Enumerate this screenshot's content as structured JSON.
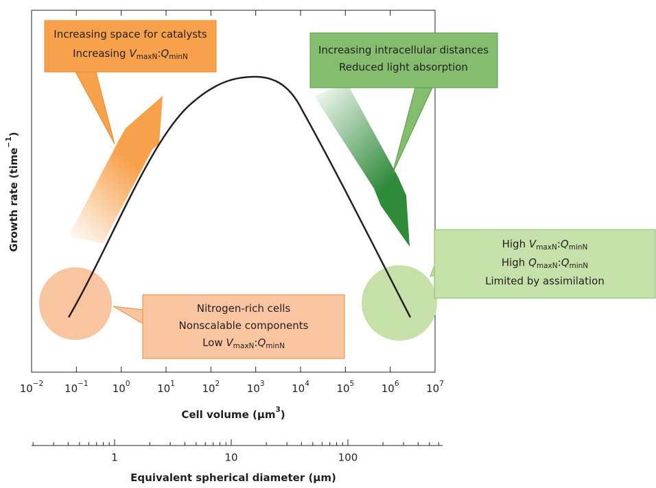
{
  "y_axis": {
    "label": [
      {
        "t": "Growth rate (time"
      },
      {
        "t": "−1",
        "sup": true
      },
      {
        "t": ")"
      }
    ]
  },
  "x_axis": {
    "label": [
      {
        "t": "Cell volume (µm"
      },
      {
        "t": "3",
        "sup": true
      },
      {
        "t": ")"
      }
    ],
    "ticks": [
      {
        "base": "10",
        "exp": "−2"
      },
      {
        "base": "10",
        "exp": "−1"
      },
      {
        "base": "10",
        "exp": "0"
      },
      {
        "base": "10",
        "exp": "1"
      },
      {
        "base": "10",
        "exp": "2"
      },
      {
        "base": "10",
        "exp": "3"
      },
      {
        "base": "10",
        "exp": "4"
      },
      {
        "base": "10",
        "exp": "5"
      },
      {
        "base": "10",
        "exp": "6"
      },
      {
        "base": "10",
        "exp": "7"
      }
    ]
  },
  "x2_axis": {
    "label": [
      {
        "t": "Equivalent spherical diameter (µm)"
      }
    ],
    "ticks": [
      "1",
      "10",
      "100"
    ]
  },
  "annotations": [
    {
      "lines": [
        [
          {
            "t": "Increasing space for catalysts"
          }
        ],
        [
          {
            "t": "Increasing "
          },
          {
            "t": "V",
            "i": true
          },
          {
            "t": "maxN",
            "sub": true
          },
          {
            "t": ":"
          },
          {
            "t": "Q",
            "i": true
          },
          {
            "t": "minN",
            "sub": true
          }
        ]
      ]
    },
    {
      "lines": [
        [
          {
            "t": "Increasing intracellular distances"
          }
        ],
        [
          {
            "t": "Reduced light absorption"
          }
        ]
      ]
    },
    {
      "lines": [
        [
          {
            "t": "High "
          },
          {
            "t": "V",
            "i": true
          },
          {
            "t": "maxN",
            "sub": true
          },
          {
            "t": ":"
          },
          {
            "t": "Q",
            "i": true
          },
          {
            "t": "minN",
            "sub": true
          }
        ],
        [
          {
            "t": "High "
          },
          {
            "t": "Q",
            "i": true
          },
          {
            "t": "maxN",
            "sub": true
          },
          {
            "t": ":"
          },
          {
            "t": "Q",
            "i": true
          },
          {
            "t": "minN",
            "sub": true
          }
        ],
        [
          {
            "t": "Limited by assimilation"
          }
        ]
      ]
    },
    {
      "lines": [
        [
          {
            "t": "Nitrogen-rich cells"
          }
        ],
        [
          {
            "t": "Nonscalable components"
          }
        ],
        [
          {
            "t": "Low "
          },
          {
            "t": "V",
            "i": true
          },
          {
            "t": "maxN",
            "sub": true
          },
          {
            "t": ":"
          },
          {
            "t": "Q",
            "i": true
          },
          {
            "t": "minN",
            "sub": true
          }
        ]
      ]
    }
  ]
}
